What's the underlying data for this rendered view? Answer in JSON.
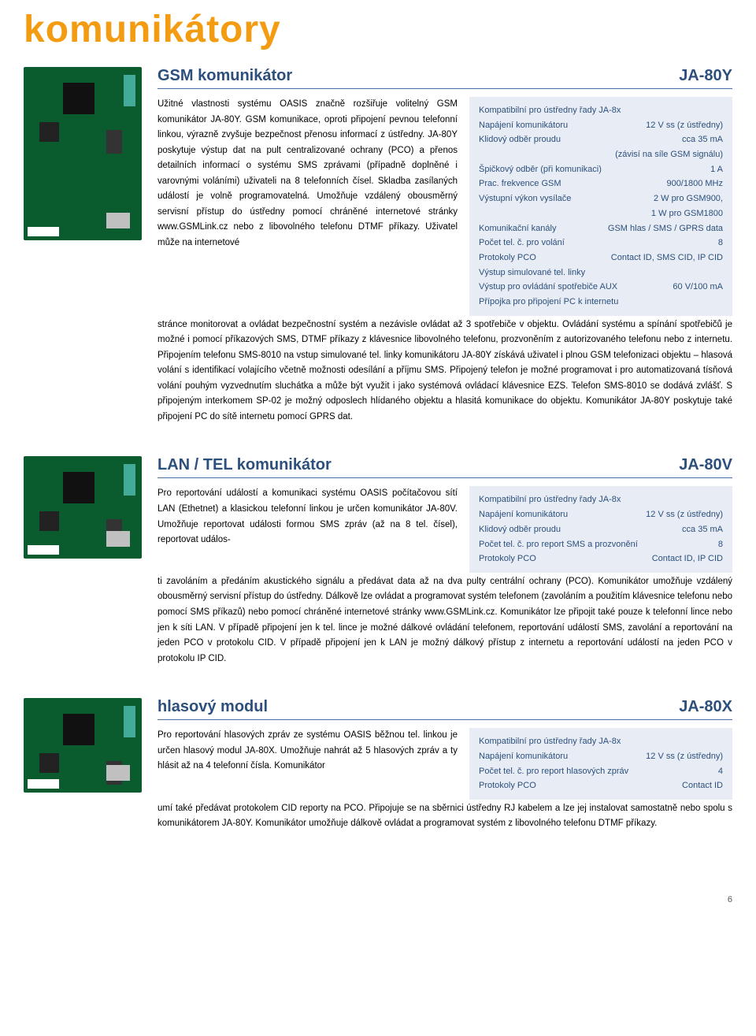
{
  "page": {
    "title": "komunikátory",
    "number": "6"
  },
  "colors": {
    "accent": "#f39c12",
    "heading": "#2c4f7c",
    "specbox_bg": "#e8edf5",
    "pcb_green": "#0a5c2e"
  },
  "sections": [
    {
      "title": "GSM komunikátor",
      "code": "JA-80Y",
      "img_size": "large",
      "intro": "Užitné vlastnosti systému OASIS značně rozšiřuje volitelný GSM komunikátor JA-80Y. GSM komunikace, oproti připojení pevnou telefonní linkou, výrazně zvyšuje bezpečnost přenosu informací z ústředny. JA-80Y poskytuje výstup dat na pult centralizované ochrany (PCO) a přenos detailních informací o systému SMS zprávami (případně doplněné i varovnými voláními) uživateli na 8 telefonních čísel. Skladba zasílaných událostí je volně programovatelná. Umožňuje vzdálený obousměrný servisní přístup do ústředny pomocí chráněné internetové stránky www.GSMLink.cz nebo z libovolného telefonu DTMF příkazy. Uživatel může na internetové",
      "cont": "stránce monitorovat a ovládat bezpečnostní systém a nezávisle ovládat až 3 spotřebiče v objektu. Ovládání systému a spínání spotřebičů je možné i pomocí příkazových SMS, DTMF příkazy z klávesnice libovolného telefonu, prozvoněním z autorizovaného telefonu nebo z internetu. Připojením telefonu SMS-8010 na vstup simulované tel. linky komunikátoru JA-80Y získává uživatel i plnou GSM telefonizaci objektu – hlasová volání s identifikací volajícího včetně možnosti odesílání a příjmu SMS. Připojený telefon je možné programovat i pro automatizovaná tísňová volání pouhým vyzvednutím sluchátka a může být využit i jako systémová ovládací klávesnice EZS. Telefon SMS-8010 se dodává zvlášť. S připojeným interkomem SP-02 je možný odposlech hlídaného objektu a hlasitá komunikace do objektu. Komunikátor JA-80Y poskytuje také připojení PC do sítě internetu pomocí GPRS dat.",
      "specs": [
        {
          "k": "Kompatibilní pro ústředny řady JA-8x",
          "v": ""
        },
        {
          "k": "Napájení komunikátoru",
          "v": "12 V ss (z ústředny)"
        },
        {
          "k": "Klidový odběr proudu",
          "v": "cca 35 mA"
        },
        {
          "k": "",
          "v": "(závisí na síle GSM signálu)"
        },
        {
          "k": "Špičkový odběr (při komunikaci)",
          "v": "1 A"
        },
        {
          "k": "Prac. frekvence GSM",
          "v": "900/1800 MHz"
        },
        {
          "k": "Výstupní výkon vysílače",
          "v": "2 W pro GSM900,"
        },
        {
          "k": "",
          "v": "1 W pro GSM1800"
        },
        {
          "k": "Komunikační kanály",
          "v": "GSM hlas / SMS / GPRS data"
        },
        {
          "k": "Počet tel. č. pro volání",
          "v": "8"
        },
        {
          "k": "Protokoly PCO",
          "v": "Contact ID, SMS CID, IP CID"
        },
        {
          "k": "Výstup simulované tel. linky",
          "v": ""
        },
        {
          "k": "Výstup pro ovládání spotřebiče AUX",
          "v": "60 V/100 mA"
        },
        {
          "k": "Přípojka pro připojení PC k internetu",
          "v": ""
        }
      ]
    },
    {
      "title": "LAN / TEL komunikátor",
      "code": "JA-80V",
      "img_size": "med",
      "intro": "Pro reportování událostí a komunikaci systému OASIS počítačovou sítí LAN (Ethetnet) a klasickou telefonní linkou je určen komunikátor JA-80V. Umožňuje reportovat události formou SMS zpráv (až na 8 tel. čísel), reportovat událos-",
      "cont": "ti zavoláním a předáním akustického signálu a předávat data až na dva pulty centrální ochrany (PCO). Komunikátor umožňuje vzdálený obousměrný servisní přístup do ústředny. Dálkově lze ovládat a programovat systém telefonem (zavoláním a použitím klávesnice telefonu nebo pomocí SMS příkazů) nebo pomocí chráněné internetové stránky www.GSMLink.cz. Komunikátor lze připojit také pouze k telefonní lince nebo jen k síti LAN. V případě připojení jen k tel. lince je možné dálkové ovládání telefonem, reportování událostí SMS, zavolání a reportování na jeden PCO v protokolu CID. V případě připojení jen k LAN je možný dálkový přístup z internetu a reportování událostí na jeden PCO v protokolu IP CID.",
      "specs": [
        {
          "k": "Kompatibilní pro ústředny řady JA-8x",
          "v": ""
        },
        {
          "k": "Napájení komunikátoru",
          "v": "12 V ss (z ústředny)"
        },
        {
          "k": "Klidový odběr proudu",
          "v": "cca 35 mA"
        },
        {
          "k": "Počet tel. č. pro report SMS a prozvonění",
          "v": "8"
        },
        {
          "k": "Protokoly PCO",
          "v": "Contact ID, IP CID"
        }
      ]
    },
    {
      "title": "hlasový modul",
      "code": "JA-80X",
      "img_size": "small",
      "intro": "Pro reportování hlasových zpráv ze systému OASIS běžnou tel. linkou je určen hlasový modul JA-80X. Umožňuje nahrát až 5 hlasových zpráv a ty hlásit až na 4 telefonní čísla. Komunikátor",
      "cont": "umí také předávat protokolem CID reporty na PCO. Připojuje se na sběrnici ústředny RJ kabelem a lze jej instalovat samostatně nebo spolu s komunikátorem JA-80Y. Komunikátor umožňuje dálkově ovládat a programovat systém z libovolného telefonu DTMF příkazy.",
      "specs": [
        {
          "k": "Kompatibilní pro ústředny řady JA-8x",
          "v": ""
        },
        {
          "k": "Napájení komunikátoru",
          "v": "12 V ss (z ústředny)"
        },
        {
          "k": "Počet tel. č. pro report hlasových zpráv",
          "v": "4"
        },
        {
          "k": "Protokoly PCO",
          "v": "Contact ID"
        }
      ]
    }
  ]
}
